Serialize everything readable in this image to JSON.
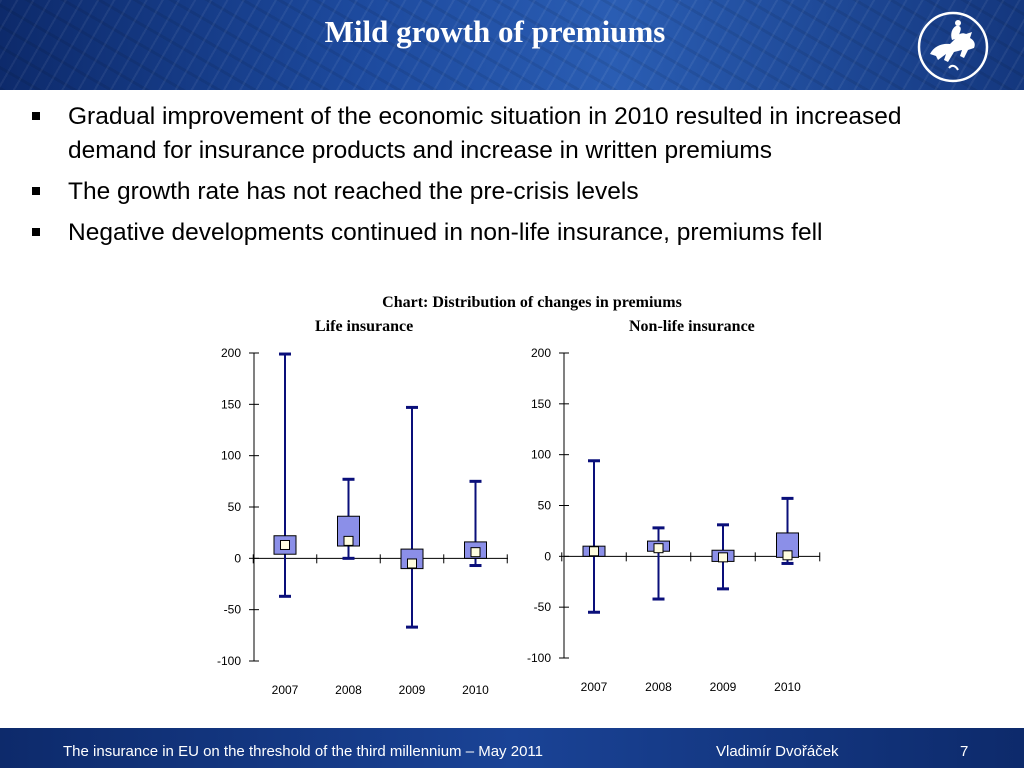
{
  "header": {
    "title": "Mild growth of premiums",
    "logo_icon": "rider-on-horse-logo-icon"
  },
  "bullets": [
    "Gradual improvement of the economic situation in 2010 resulted in increased demand for insurance products and increase in written premiums",
    "The growth rate has not reached the pre-crisis levels",
    "Negative developments continued in non-life insurance, premiums fell"
  ],
  "chart_title": "Chart: Distribution of changes in premiums",
  "chart_data": [
    {
      "type": "box",
      "title": "Life insurance",
      "ylim": [
        -100,
        200
      ],
      "yticks": [
        "200",
        "150",
        "100",
        "50",
        "0",
        "-50",
        "-100"
      ],
      "categories": [
        "2007",
        "2008",
        "2009",
        "2010"
      ],
      "series": [
        {
          "category": "2007",
          "min": -37,
          "q1": 4,
          "median": 13,
          "q3": 22,
          "max": 199
        },
        {
          "category": "2008",
          "min": 0,
          "q1": 12,
          "median": 17,
          "q3": 41,
          "max": 77
        },
        {
          "category": "2009",
          "min": -67,
          "q1": -10,
          "median": -5,
          "q3": 9,
          "max": 147
        },
        {
          "category": "2010",
          "min": -7,
          "q1": 0,
          "median": 6,
          "q3": 16,
          "max": 75
        }
      ]
    },
    {
      "type": "box",
      "title": "Non-life insurance",
      "ylim": [
        -100,
        200
      ],
      "yticks": [
        "200",
        "150",
        "100",
        "50",
        "0",
        "-50",
        "-100"
      ],
      "categories": [
        "2007",
        "2008",
        "2009",
        "2010"
      ],
      "series": [
        {
          "category": "2007",
          "min": -55,
          "q1": 0,
          "median": 5,
          "q3": 10,
          "max": 94
        },
        {
          "category": "2008",
          "min": -42,
          "q1": 5,
          "median": 8,
          "q3": 15,
          "max": 28
        },
        {
          "category": "2009",
          "min": -32,
          "q1": -5,
          "median": -1,
          "q3": 6,
          "max": 31
        },
        {
          "category": "2010",
          "min": -7,
          "q1": -1,
          "median": 1,
          "q3": 23,
          "max": 57
        }
      ]
    }
  ],
  "colors": {
    "header_bg": "#1d4a9e",
    "box_fill": "#8b8fe8",
    "whisker": "#0a0f7a",
    "median_fill": "#fffde0"
  },
  "footer": {
    "text": "The insurance in EU on the threshold of the third millennium – May 2011",
    "author": "Vladimír Dvořáček",
    "page": "7"
  }
}
